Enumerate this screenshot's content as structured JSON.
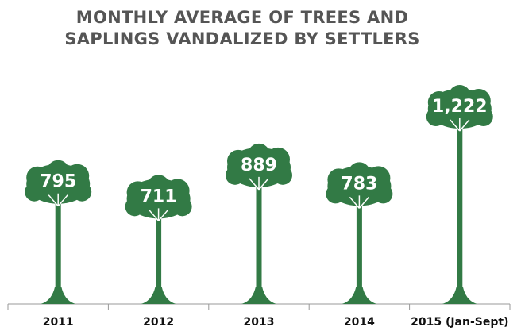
{
  "chart_data": {
    "type": "pictograph",
    "title": [
      "MONTHLY AVERAGE OF TREES AND",
      "SAPLINGS VANDALIZED BY SETTLERS"
    ],
    "categories": [
      "2011",
      "2012",
      "2013",
      "2014",
      "2015 (Jan-Sept)"
    ],
    "values": [
      795,
      711,
      889,
      783,
      1222
    ],
    "value_labels": [
      "795",
      "711",
      "889",
      "783",
      "1,222"
    ],
    "color": "#327a45"
  }
}
